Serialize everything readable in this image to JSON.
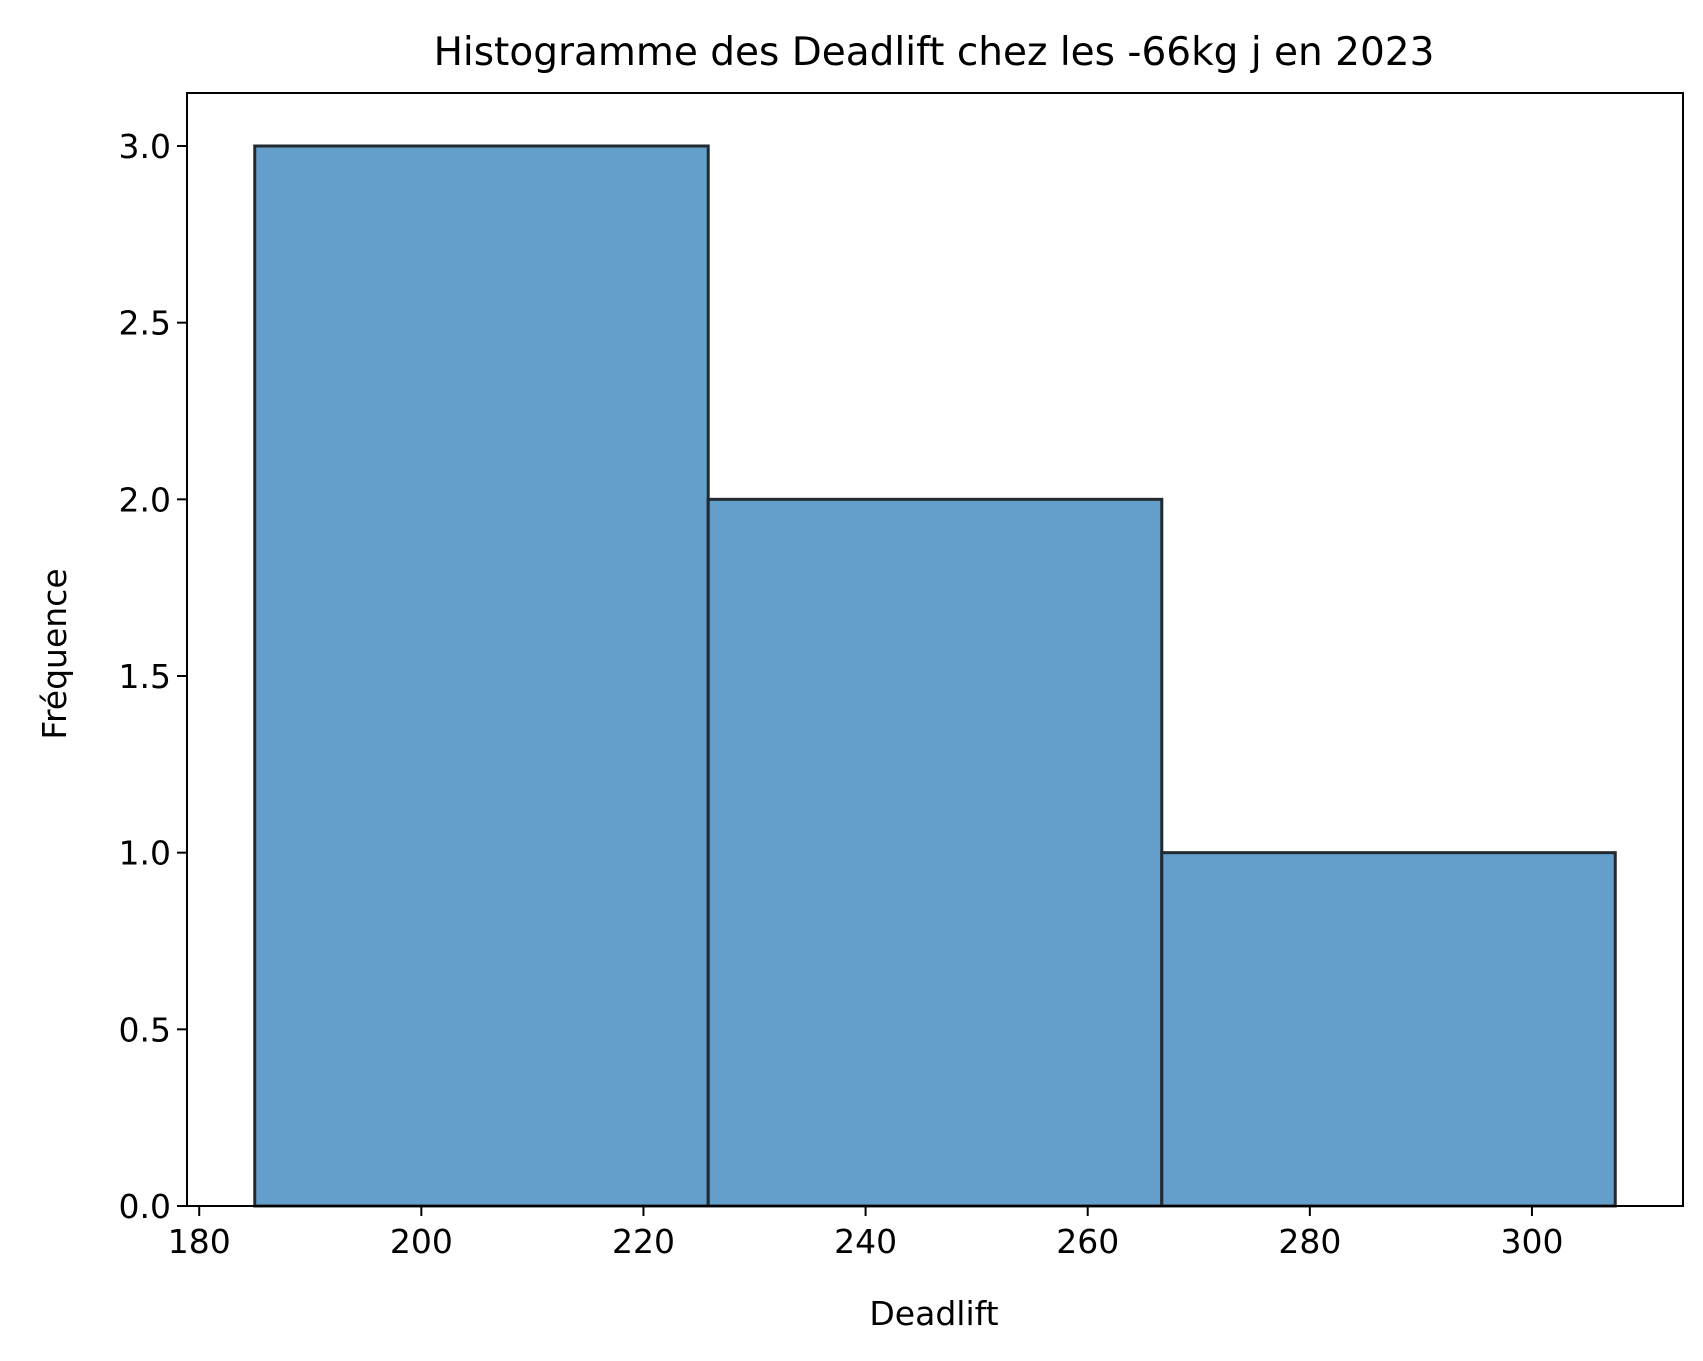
{
  "chart_data": {
    "type": "bar",
    "title": "Histogramme des Deadlift chez les -66kg j en 2023",
    "xlabel": "Deadlift",
    "ylabel": "Fréquence",
    "bins": [
      {
        "start": 185.0,
        "end": 225.83,
        "count": 3
      },
      {
        "start": 225.83,
        "end": 266.67,
        "count": 2
      },
      {
        "start": 266.67,
        "end": 307.5,
        "count": 1
      }
    ],
    "xlim": [
      178.9,
      313.6
    ],
    "ylim": [
      0,
      3.15
    ],
    "xticks": [
      {
        "value": 180,
        "label": "180"
      },
      {
        "value": 200,
        "label": "200"
      },
      {
        "value": 220,
        "label": "220"
      },
      {
        "value": 240,
        "label": "240"
      },
      {
        "value": 260,
        "label": "260"
      },
      {
        "value": 280,
        "label": "280"
      },
      {
        "value": 300,
        "label": "300"
      }
    ],
    "yticks": [
      {
        "value": 0.0,
        "label": "0.0"
      },
      {
        "value": 0.5,
        "label": "0.5"
      },
      {
        "value": 1.0,
        "label": "1.0"
      },
      {
        "value": 1.5,
        "label": "1.5"
      },
      {
        "value": 2.0,
        "label": "2.0"
      },
      {
        "value": 2.5,
        "label": "2.5"
      },
      {
        "value": 3.0,
        "label": "3.0"
      }
    ],
    "grid": false,
    "legend": "none",
    "bar_color": "#649fcb",
    "bar_edge_color": "#222a30"
  }
}
